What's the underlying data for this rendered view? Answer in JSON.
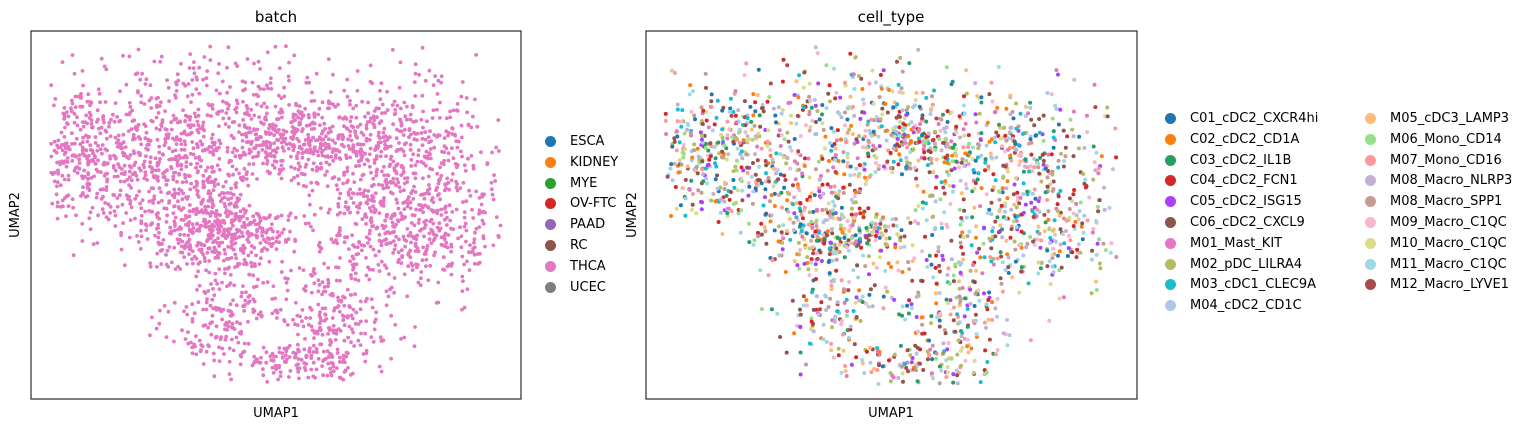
{
  "palette": {
    "ESCA": "#1f77b4",
    "KIDNEY": "#ff7f0e",
    "MYE": "#2ca02c",
    "OV-FTC": "#d62728",
    "PAAD": "#9467bd",
    "RC": "#8c564b",
    "THCA": "#e377c2",
    "UCEC": "#7f7f7f"
  },
  "chart_data": [
    {
      "type": "scatter",
      "title": "batch",
      "xlabel": "UMAP1",
      "ylabel": "UMAP2",
      "ticks": "none",
      "legend_position": "right",
      "legend": [
        {
          "name": "ESCA",
          "color": "#1f77b4"
        },
        {
          "name": "KIDNEY",
          "color": "#ff7f0e"
        },
        {
          "name": "MYE",
          "color": "#2ca02c"
        },
        {
          "name": "OV-FTC",
          "color": "#d62728"
        },
        {
          "name": "PAAD",
          "color": "#9467bd"
        },
        {
          "name": "RC",
          "color": "#8c564b"
        },
        {
          "name": "THCA",
          "color": "#e377c2"
        },
        {
          "name": "UCEC",
          "color": "#7f7f7f"
        }
      ],
      "points_visible_series": "THCA",
      "approx_point_count": 3000
    },
    {
      "type": "scatter",
      "title": "cell_type",
      "xlabel": "UMAP1",
      "ylabel": "UMAP2",
      "ticks": "none",
      "legend_position": "right",
      "legend_columns": 2,
      "legend": [
        {
          "name": "C01_cDC2_CXCR4hi",
          "color": "#1f77b4"
        },
        {
          "name": "C02_cDC2_CD1A",
          "color": "#ff7f0e"
        },
        {
          "name": "C03_cDC2_IL1B",
          "color": "#279e68"
        },
        {
          "name": "C04_cDC2_FCN1",
          "color": "#d62728"
        },
        {
          "name": "C05_cDC2_ISG15",
          "color": "#aa40fc"
        },
        {
          "name": "C06_cDC2_CXCL9",
          "color": "#8c564b"
        },
        {
          "name": "M01_Mast_KIT",
          "color": "#e377c2"
        },
        {
          "name": "M02_pDC_LILRA4",
          "color": "#b5bd61"
        },
        {
          "name": "M03_cDC1_CLEC9A",
          "color": "#17becf"
        },
        {
          "name": "M04_cDC2_CD1C",
          "color": "#aec7e8"
        },
        {
          "name": "M05_cDC3_LAMP3",
          "color": "#ffbb78"
        },
        {
          "name": "M06_Mono_CD14",
          "color": "#98df8a"
        },
        {
          "name": "M07_Mono_CD16",
          "color": "#ff9896"
        },
        {
          "name": "M08_Macro_NLRP3",
          "color": "#c5b0d5"
        },
        {
          "name": "M08_Macro_SPP1",
          "color": "#c49c94"
        },
        {
          "name": "M09_Macro_C1QC",
          "color": "#f7b6d2"
        },
        {
          "name": "M10_Macro_C1QC",
          "color": "#dbdb8d"
        },
        {
          "name": "M11_Macro_C1QC",
          "color": "#9edae5"
        },
        {
          "name": "M12_Macro_LYVE1",
          "color": "#ad494a"
        }
      ],
      "approx_point_count": 2200
    }
  ]
}
